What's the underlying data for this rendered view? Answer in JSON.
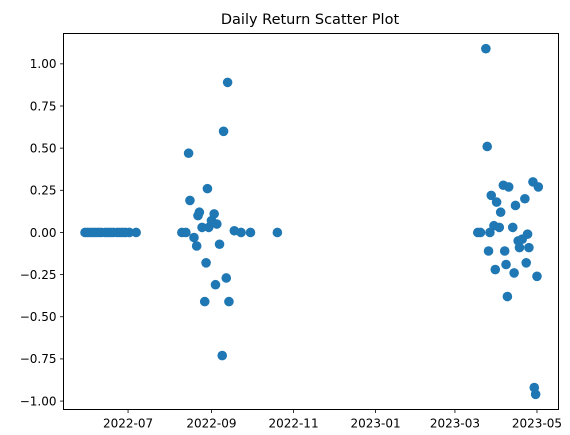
{
  "chart_data": {
    "type": "scatter",
    "title": "Daily Return Scatter Plot",
    "xlabel": "",
    "ylabel": "",
    "x_type": "date",
    "xlim": [
      "2022-05-14",
      "2023-05-17"
    ],
    "ylim": [
      -1.05,
      1.18
    ],
    "x_ticks": [
      {
        "date": "2022-07-01",
        "label": "2022-07"
      },
      {
        "date": "2022-09-01",
        "label": "2022-09"
      },
      {
        "date": "2022-11-01",
        "label": "2022-11"
      },
      {
        "date": "2023-01-01",
        "label": "2023-01"
      },
      {
        "date": "2023-03-01",
        "label": "2023-03"
      },
      {
        "date": "2023-05-01",
        "label": "2023-05"
      }
    ],
    "y_ticks": [
      {
        "value": 1.0,
        "label": "1.00"
      },
      {
        "value": 0.75,
        "label": "0.75"
      },
      {
        "value": 0.5,
        "label": "0.50"
      },
      {
        "value": 0.25,
        "label": "0.25"
      },
      {
        "value": 0.0,
        "label": "0.00"
      },
      {
        "value": -0.25,
        "label": "−0.25"
      },
      {
        "value": -0.5,
        "label": "−0.50"
      },
      {
        "value": -0.75,
        "label": "−0.75"
      },
      {
        "value": -1.0,
        "label": "−1.00"
      }
    ],
    "grid": false,
    "series": [
      {
        "color": "#1f77b4",
        "points": [
          {
            "x": "2022-05-30",
            "y": 0.0
          },
          {
            "x": "2022-06-01",
            "y": 0.0
          },
          {
            "x": "2022-06-03",
            "y": 0.0
          },
          {
            "x": "2022-06-05",
            "y": 0.0
          },
          {
            "x": "2022-06-07",
            "y": 0.0
          },
          {
            "x": "2022-06-09",
            "y": 0.0
          },
          {
            "x": "2022-06-11",
            "y": 0.0
          },
          {
            "x": "2022-06-14",
            "y": 0.0
          },
          {
            "x": "2022-06-16",
            "y": 0.0
          },
          {
            "x": "2022-06-18",
            "y": 0.0
          },
          {
            "x": "2022-06-20",
            "y": 0.0
          },
          {
            "x": "2022-06-23",
            "y": 0.0
          },
          {
            "x": "2022-06-25",
            "y": 0.0
          },
          {
            "x": "2022-06-27",
            "y": 0.0
          },
          {
            "x": "2022-06-29",
            "y": 0.0
          },
          {
            "x": "2022-07-02",
            "y": 0.0
          },
          {
            "x": "2022-07-07",
            "y": 0.0
          },
          {
            "x": "2022-08-10",
            "y": 0.0
          },
          {
            "x": "2022-08-13",
            "y": 0.0
          },
          {
            "x": "2022-08-15",
            "y": 0.47
          },
          {
            "x": "2022-08-16",
            "y": 0.19
          },
          {
            "x": "2022-08-19",
            "y": -0.03
          },
          {
            "x": "2022-08-21",
            "y": -0.08
          },
          {
            "x": "2022-08-22",
            "y": 0.1
          },
          {
            "x": "2022-08-23",
            "y": 0.12
          },
          {
            "x": "2022-08-25",
            "y": 0.03
          },
          {
            "x": "2022-08-27",
            "y": -0.41
          },
          {
            "x": "2022-08-28",
            "y": -0.18
          },
          {
            "x": "2022-08-29",
            "y": 0.26
          },
          {
            "x": "2022-08-30",
            "y": 0.03
          },
          {
            "x": "2022-09-01",
            "y": 0.07
          },
          {
            "x": "2022-09-03",
            "y": 0.11
          },
          {
            "x": "2022-09-04",
            "y": -0.31
          },
          {
            "x": "2022-09-05",
            "y": 0.05
          },
          {
            "x": "2022-09-07",
            "y": -0.07
          },
          {
            "x": "2022-09-09",
            "y": -0.73
          },
          {
            "x": "2022-09-10",
            "y": 0.6
          },
          {
            "x": "2022-09-12",
            "y": -0.27
          },
          {
            "x": "2022-09-13",
            "y": 0.89
          },
          {
            "x": "2022-09-14",
            "y": -0.41
          },
          {
            "x": "2022-09-18",
            "y": 0.01
          },
          {
            "x": "2022-09-23",
            "y": 0.0
          },
          {
            "x": "2022-09-30",
            "y": 0.0
          },
          {
            "x": "2022-10-20",
            "y": 0.0
          },
          {
            "x": "2023-03-18",
            "y": 0.0
          },
          {
            "x": "2023-03-20",
            "y": 0.0
          },
          {
            "x": "2023-03-24",
            "y": 1.09
          },
          {
            "x": "2023-03-25",
            "y": 0.51
          },
          {
            "x": "2023-03-26",
            "y": -0.11
          },
          {
            "x": "2023-03-27",
            "y": 0.0
          },
          {
            "x": "2023-03-28",
            "y": 0.22
          },
          {
            "x": "2023-03-30",
            "y": 0.04
          },
          {
            "x": "2023-03-31",
            "y": -0.22
          },
          {
            "x": "2023-04-01",
            "y": 0.18
          },
          {
            "x": "2023-04-03",
            "y": 0.03
          },
          {
            "x": "2023-04-04",
            "y": 0.12
          },
          {
            "x": "2023-04-06",
            "y": 0.28
          },
          {
            "x": "2023-04-07",
            "y": -0.11
          },
          {
            "x": "2023-04-08",
            "y": -0.19
          },
          {
            "x": "2023-04-09",
            "y": -0.38
          },
          {
            "x": "2023-04-10",
            "y": 0.27
          },
          {
            "x": "2023-04-13",
            "y": 0.03
          },
          {
            "x": "2023-04-14",
            "y": -0.24
          },
          {
            "x": "2023-04-15",
            "y": 0.16
          },
          {
            "x": "2023-04-17",
            "y": -0.05
          },
          {
            "x": "2023-04-18",
            "y": -0.09
          },
          {
            "x": "2023-04-20",
            "y": -0.04
          },
          {
            "x": "2023-04-22",
            "y": 0.2
          },
          {
            "x": "2023-04-23",
            "y": -0.18
          },
          {
            "x": "2023-04-24",
            "y": -0.01
          },
          {
            "x": "2023-04-25",
            "y": -0.09
          },
          {
            "x": "2023-04-28",
            "y": 0.3
          },
          {
            "x": "2023-04-29",
            "y": -0.92
          },
          {
            "x": "2023-04-30",
            "y": -0.96
          },
          {
            "x": "2023-05-01",
            "y": -0.26
          },
          {
            "x": "2023-05-02",
            "y": 0.27
          }
        ]
      }
    ]
  }
}
